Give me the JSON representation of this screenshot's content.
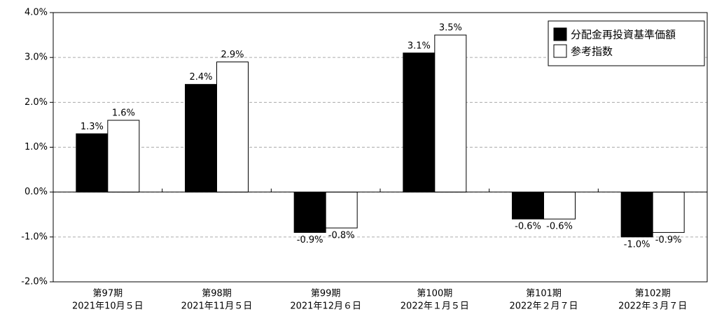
{
  "chart_data": {
    "type": "bar",
    "categories": [
      "第97期",
      "第98期",
      "第99期",
      "第100期",
      "第101期",
      "第102期"
    ],
    "dates": [
      "2021年10月５日",
      "2021年11月５日",
      "2021年12月６日",
      "2022年１月５日",
      "2022年２月７日",
      "2022年３月７日"
    ],
    "series": [
      {
        "name": "分配金再投資基準価額",
        "color": "#000000",
        "values": [
          1.3,
          2.4,
          -0.9,
          3.1,
          -0.6,
          -1.0
        ],
        "value_labels": [
          "1.3%",
          "2.4%",
          "-0.9%",
          "3.1%",
          "-0.6%",
          "-1.0%"
        ]
      },
      {
        "name": "参考指数",
        "color": "#ffffff",
        "values": [
          1.6,
          2.9,
          -0.8,
          3.5,
          -0.6,
          -0.9
        ],
        "value_labels": [
          "1.6%",
          "2.9%",
          "-0.8%",
          "3.5%",
          "-0.6%",
          "-0.9%"
        ]
      }
    ],
    "ylim": [
      -2.0,
      4.0
    ],
    "yticks": [
      {
        "value": 4.0,
        "label": "4.0%"
      },
      {
        "value": 3.0,
        "label": "3.0%"
      },
      {
        "value": 2.0,
        "label": "2.0%"
      },
      {
        "value": 1.0,
        "label": "1.0%"
      },
      {
        "value": 0.0,
        "label": "0.0%"
      },
      {
        "value": -1.0,
        "label": "-1.0%"
      },
      {
        "value": -2.0,
        "label": "-2.0%"
      }
    ],
    "grid": true,
    "legend": "top-right"
  }
}
